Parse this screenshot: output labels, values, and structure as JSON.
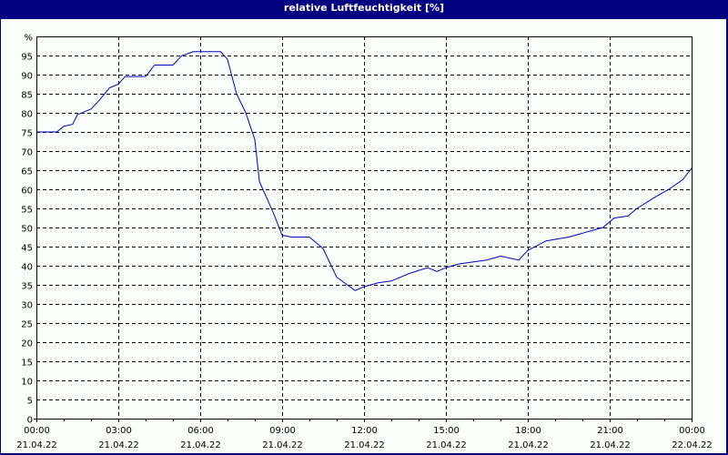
{
  "window": {
    "title": "relative Luftfeuchtigkeit [%]"
  },
  "colors": {
    "titlebar": "#000080",
    "background": "#fafefa",
    "series": "#0000c8",
    "grid": "#000000"
  },
  "chart_data": {
    "type": "line",
    "title": "relative Luftfeuchtigkeit [%]",
    "xlabel": "",
    "ylabel": "%",
    "ylim": [
      0,
      100
    ],
    "xlim_hours": [
      0,
      24
    ],
    "grid": true,
    "y_ticks": [
      "0",
      "5",
      "10",
      "15",
      "20",
      "25",
      "30",
      "35",
      "40",
      "45",
      "50",
      "55",
      "60",
      "65",
      "70",
      "75",
      "80",
      "85",
      "90",
      "95",
      "%"
    ],
    "x_ticks": [
      {
        "time": "00:00",
        "date": "21.04.22"
      },
      {
        "time": "03:00",
        "date": "21.04.22"
      },
      {
        "time": "06:00",
        "date": "21.04.22"
      },
      {
        "time": "09:00",
        "date": "21.04.22"
      },
      {
        "time": "12:00",
        "date": "21.04.22"
      },
      {
        "time": "15:00",
        "date": "21.04.22"
      },
      {
        "time": "18:00",
        "date": "21.04.22"
      },
      {
        "time": "21:00",
        "date": "21.04.22"
      },
      {
        "time": "00:00",
        "date": "22.04.22"
      }
    ],
    "series": [
      {
        "name": "relative Luftfeuchtigkeit",
        "x_hours": [
          0,
          0.75,
          1.0,
          1.33,
          1.5,
          2.0,
          2.33,
          2.67,
          3.0,
          3.25,
          4.0,
          4.33,
          5.0,
          5.33,
          5.75,
          6.75,
          7.0,
          7.33,
          7.67,
          8.0,
          8.17,
          8.67,
          9.0,
          9.33,
          10.0,
          10.5,
          11.0,
          11.67,
          12.0,
          12.5,
          13.0,
          13.67,
          14.33,
          14.67,
          15.0,
          15.5,
          16.5,
          17.0,
          17.67,
          18.0,
          18.67,
          19.5,
          20.0,
          20.75,
          21.17,
          21.67,
          22.0,
          22.67,
          23.17,
          23.67,
          24.0
        ],
        "values": [
          75,
          75,
          76.5,
          77,
          79.5,
          81,
          83.5,
          86.5,
          87.5,
          89.5,
          89.5,
          92.5,
          92.5,
          95,
          96,
          96,
          94,
          85,
          80,
          73,
          62,
          54,
          48,
          47.5,
          47.5,
          44.5,
          37,
          33.5,
          34.5,
          35.5,
          36,
          38,
          39.5,
          38.5,
          39.5,
          40.5,
          41.5,
          42.5,
          41.5,
          44,
          46.5,
          47.5,
          48.5,
          50,
          52.5,
          53,
          55,
          58,
          60,
          62.5,
          65.5
        ]
      }
    ]
  }
}
